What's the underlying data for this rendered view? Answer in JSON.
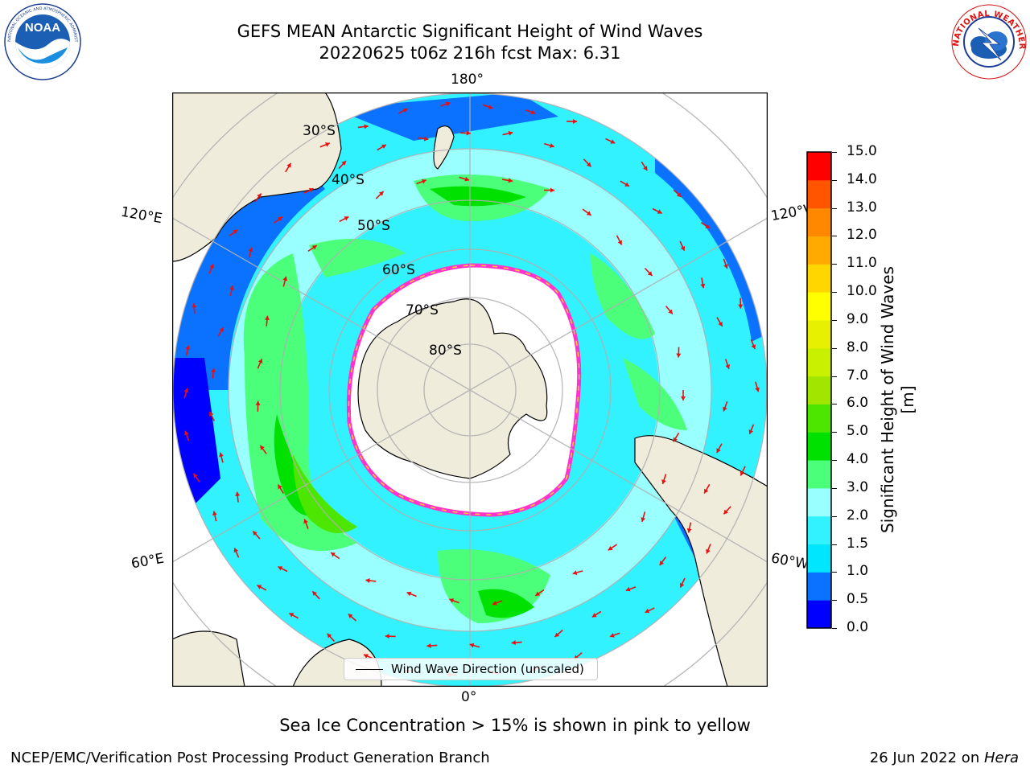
{
  "header": {
    "title_line1": "GEFS MEAN Antarctic Significant Height of Wind Waves",
    "title_line2": "20220625 t06z 216h fcst   Max: 6.31"
  },
  "logos": {
    "left": "NOAA",
    "left_ring": "NATIONAL OCEANIC AND ATMOSPHERIC ADMINISTRATION · U.S. DEPARTMENT OF COMMERCE",
    "right_ring": "NATIONAL WEATHER SERVICE"
  },
  "map": {
    "projection": "south-polar-stereographic",
    "lon_labels": {
      "top": "180°",
      "bottom": "0°",
      "upper_left": "120°E",
      "upper_right": "120°W",
      "lower_left": "60°E",
      "lower_right": "60°W"
    },
    "lat_labels": [
      "30°S",
      "40°S",
      "50°S",
      "60°S",
      "70°S",
      "80°S"
    ],
    "legend_label": "Wind Wave Direction (unscaled)",
    "colors": {
      "land": "#efecdc",
      "ice": "#ffffff",
      "ice_edge_pink": "#ff33cc",
      "ice_edge_yellow": "#ffcc33",
      "arrow": "#e61010",
      "grid": "#b0b0b0"
    }
  },
  "colorbar": {
    "title": "Significant Height of Wind Waves [m]",
    "ticks": [
      "0.0",
      "0.5",
      "1.0",
      "1.5",
      "2.0",
      "3.0",
      "4.0",
      "5.0",
      "6.0",
      "7.0",
      "8.0",
      "9.0",
      "10.0",
      "11.0",
      "12.0",
      "13.0",
      "14.0",
      "15.0"
    ],
    "colors": [
      "#0000ff",
      "#0a72ff",
      "#00e6ff",
      "#33f2ff",
      "#99ffff",
      "#4cff7a",
      "#00e100",
      "#4ce600",
      "#a2e600",
      "#c8f000",
      "#e6f000",
      "#ffff00",
      "#ffd600",
      "#ffaa00",
      "#ff8800",
      "#ff5500",
      "#ff0000"
    ]
  },
  "notes": {
    "ice": "Sea Ice Concentration > 15% is shown in pink to yellow"
  },
  "footer": {
    "left": "NCEP/EMC/Verification Post Processing Product Generation Branch",
    "right_date": "26 Jun 2022 on ",
    "right_machine": "Hera"
  }
}
